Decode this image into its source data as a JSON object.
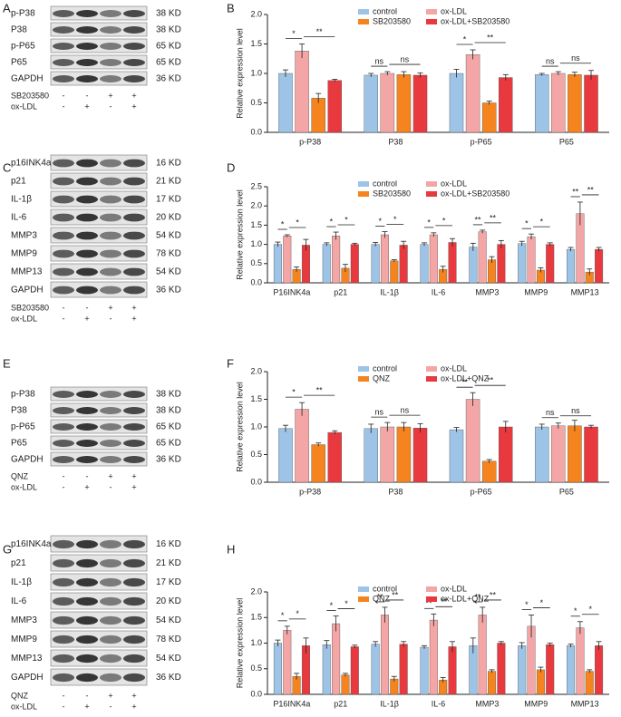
{
  "blots": [
    {
      "letter": "A",
      "rows": [
        {
          "label": "p-P38",
          "kd": "38 KD"
        },
        {
          "label": "P38",
          "kd": "38 KD"
        },
        {
          "label": "p-P65",
          "kd": "65 KD"
        },
        {
          "label": "P65",
          "kd": "65 KD"
        },
        {
          "label": "GAPDH",
          "kd": "36 KD"
        }
      ],
      "treatments": [
        {
          "label": "SB203580",
          "signs": [
            "-",
            "-",
            "+",
            "+"
          ]
        },
        {
          "label": "ox-LDL",
          "signs": [
            "-",
            "+",
            "-",
            "+"
          ]
        }
      ]
    },
    {
      "letter": "C",
      "rows": [
        {
          "label": "p16INK4a",
          "kd": "16 KD"
        },
        {
          "label": "p21",
          "kd": "21 KD"
        },
        {
          "label": "IL-1β",
          "kd": "17 KD"
        },
        {
          "label": "IL-6",
          "kd": "20 KD"
        },
        {
          "label": "MMP3",
          "kd": "54 KD"
        },
        {
          "label": "MMP9",
          "kd": "78 KD"
        },
        {
          "label": "MMP13",
          "kd": "54 KD"
        },
        {
          "label": "GAPDH",
          "kd": "36 KD"
        }
      ],
      "treatments": [
        {
          "label": "SB203580",
          "signs": [
            "-",
            "-",
            "+",
            "+"
          ]
        },
        {
          "label": "ox-LDL",
          "signs": [
            "-",
            "+",
            "-",
            "+"
          ]
        }
      ]
    },
    {
      "letter": "E",
      "rows": [
        {
          "label": "p-P38",
          "kd": "38 KD"
        },
        {
          "label": "P38",
          "kd": "38 KD"
        },
        {
          "label": "p-P65",
          "kd": "65 KD"
        },
        {
          "label": "P65",
          "kd": "65 KD"
        },
        {
          "label": "GAPDH",
          "kd": "36 KD"
        }
      ],
      "treatments": [
        {
          "label": "QNZ",
          "signs": [
            "-",
            "-",
            "+",
            "+"
          ]
        },
        {
          "label": "ox-LDL",
          "signs": [
            "-",
            "+",
            "-",
            "+"
          ]
        }
      ]
    },
    {
      "letter": "G",
      "rows": [
        {
          "label": "p16INK4a",
          "kd": "16 KD"
        },
        {
          "label": "p21",
          "kd": "21 KD"
        },
        {
          "label": "IL-1β",
          "kd": "17 KD"
        },
        {
          "label": "IL-6",
          "kd": "20 KD"
        },
        {
          "label": "MMP3",
          "kd": "54 KD"
        },
        {
          "label": "MMP9",
          "kd": "78 KD"
        },
        {
          "label": "MMP13",
          "kd": "54 KD"
        },
        {
          "label": "GAPDH",
          "kd": "36 KD"
        }
      ],
      "treatments": [
        {
          "label": "QNZ",
          "signs": [
            "-",
            "-",
            "+",
            "+"
          ]
        },
        {
          "label": "ox-LDL",
          "signs": [
            "-",
            "+",
            "-",
            "+"
          ]
        }
      ]
    }
  ],
  "chart_data": [
    {
      "type": "bar",
      "letter": "B",
      "ylabel": "Relative expression level",
      "categories": [
        "p-P38",
        "P38",
        "p-P65",
        "P65"
      ],
      "series": [
        {
          "name": "control",
          "color": "#9dc3e6",
          "values": [
            1.0,
            0.97,
            1.0,
            0.98
          ],
          "errors": [
            0.06,
            0.03,
            0.07,
            0.02
          ]
        },
        {
          "name": "ox-LDL",
          "color": "#f4a6a6",
          "values": [
            1.38,
            1.0,
            1.32,
            1.0
          ],
          "errors": [
            0.12,
            0.03,
            0.08,
            0.03
          ]
        },
        {
          "name": "SB203580",
          "color": "#f5841f",
          "values": [
            0.58,
            0.98,
            0.5,
            0.98
          ],
          "errors": [
            0.08,
            0.05,
            0.03,
            0.04
          ]
        },
        {
          "name": "ox-LDL+SB203580",
          "color": "#e8393e",
          "values": [
            0.88,
            0.97,
            0.93,
            0.97
          ],
          "errors": [
            0.02,
            0.04,
            0.05,
            0.08
          ]
        }
      ],
      "ylim": [
        0,
        2
      ],
      "yticks": [
        {
          "value": 0,
          "label": "0.0"
        },
        0.5,
        {
          "value": 1,
          "label": "1.0"
        },
        1.5,
        {
          "value": 2,
          "label": "2.0"
        }
      ],
      "annotations": [
        [
          "*",
          "**"
        ],
        [
          "ns",
          "ns"
        ],
        [
          "*",
          "**"
        ],
        [
          "ns",
          "ns"
        ]
      ]
    },
    {
      "type": "bar",
      "letter": "D",
      "ylabel": "Relative expression level",
      "categories": [
        "P16INK4a",
        "p21",
        "IL-1β",
        "IL-6",
        "MMP3",
        "MMP9",
        "MMP13"
      ],
      "series": [
        {
          "name": "control",
          "color": "#9dc3e6",
          "values": [
            1.0,
            1.0,
            1.0,
            1.0,
            0.93,
            1.02,
            0.87
          ],
          "errors": [
            0.06,
            0.04,
            0.05,
            0.04,
            0.1,
            0.06,
            0.05
          ]
        },
        {
          "name": "ox-LDL",
          "color": "#f4a6a6",
          "values": [
            1.22,
            1.22,
            1.25,
            1.25,
            1.33,
            1.2,
            1.8
          ],
          "errors": [
            0.03,
            0.1,
            0.08,
            0.05,
            0.04,
            0.07,
            0.3
          ]
        },
        {
          "name": "SB203580",
          "color": "#f5841f",
          "values": [
            0.35,
            0.38,
            0.57,
            0.35,
            0.6,
            0.33,
            0.28
          ],
          "errors": [
            0.06,
            0.1,
            0.03,
            0.08,
            0.08,
            0.06,
            0.08
          ]
        },
        {
          "name": "ox-LDL+SB203580",
          "color": "#e8393e",
          "values": [
            0.98,
            1.0,
            0.98,
            1.05,
            1.0,
            1.0,
            0.87
          ],
          "errors": [
            0.15,
            0.03,
            0.1,
            0.1,
            0.1,
            0.04,
            0.05
          ]
        }
      ],
      "ylim": [
        0,
        2.5
      ],
      "yticks": [
        {
          "value": 0,
          "label": "0.0"
        },
        0.5,
        {
          "value": 1,
          "label": "1.0"
        },
        1.5,
        {
          "value": 2,
          "label": "2.0"
        },
        2.5
      ],
      "annotations": [
        [
          "*",
          "*"
        ],
        [
          "*",
          "*"
        ],
        [
          "*",
          "*"
        ],
        [
          "*",
          "*"
        ],
        [
          "**",
          "**"
        ],
        [
          "*",
          "*"
        ],
        [
          "**",
          "**"
        ]
      ]
    },
    {
      "type": "bar",
      "letter": "F",
      "ylabel": "Relative expression level",
      "categories": [
        "p-P38",
        "P38",
        "p-P65",
        "P65"
      ],
      "series": [
        {
          "name": "control",
          "color": "#9dc3e6",
          "values": [
            0.97,
            0.97,
            0.95,
            1.0
          ],
          "errors": [
            0.06,
            0.08,
            0.04,
            0.05
          ]
        },
        {
          "name": "ox-LDL",
          "color": "#f4a6a6",
          "values": [
            1.32,
            1.0,
            1.5,
            1.02
          ],
          "errors": [
            0.12,
            0.08,
            0.12,
            0.05
          ]
        },
        {
          "name": "QNZ",
          "color": "#f5841f",
          "values": [
            0.68,
            1.0,
            0.38,
            1.02
          ],
          "errors": [
            0.03,
            0.08,
            0.03,
            0.1
          ]
        },
        {
          "name": "ox-LDL+QNZ",
          "color": "#e8393e",
          "values": [
            0.9,
            0.98,
            1.0,
            1.0
          ],
          "errors": [
            0.03,
            0.08,
            0.1,
            0.03
          ]
        }
      ],
      "ylim": [
        0,
        2
      ],
      "yticks": [
        {
          "value": 0,
          "label": "0.0"
        },
        0.5,
        {
          "value": 1,
          "label": "1.0"
        },
        1.5,
        {
          "value": 2,
          "label": "2.0"
        }
      ],
      "annotations": [
        [
          "*",
          "**"
        ],
        [
          "ns",
          "ns"
        ],
        [
          "**",
          "**"
        ],
        [
          "ns",
          "ns"
        ]
      ]
    },
    {
      "type": "bar",
      "letter": "H",
      "ylabel": "Relative expression level",
      "categories": [
        "P16INK4a",
        "p21",
        "IL-1β",
        "IL-6",
        "MMP3",
        "MMP9",
        "MMP13"
      ],
      "series": [
        {
          "name": "control",
          "color": "#9dc3e6",
          "values": [
            1.0,
            0.97,
            0.98,
            0.92,
            0.95,
            0.95,
            0.95
          ],
          "errors": [
            0.06,
            0.08,
            0.05,
            0.03,
            0.15,
            0.06,
            0.03
          ]
        },
        {
          "name": "ox-LDL",
          "color": "#f4a6a6",
          "values": [
            1.25,
            1.38,
            1.55,
            1.45,
            1.55,
            1.33,
            1.3
          ],
          "errors": [
            0.08,
            0.15,
            0.15,
            0.12,
            0.15,
            0.22,
            0.12
          ]
        },
        {
          "name": "QNZ",
          "color": "#f5841f",
          "values": [
            0.35,
            0.38,
            0.3,
            0.28,
            0.45,
            0.48,
            0.45
          ],
          "errors": [
            0.06,
            0.03,
            0.05,
            0.05,
            0.03,
            0.05,
            0.03
          ]
        },
        {
          "name": "ox-LDL+QNZ",
          "color": "#e8393e",
          "values": [
            0.95,
            0.93,
            0.98,
            0.93,
            1.0,
            0.97,
            0.95
          ],
          "errors": [
            0.15,
            0.03,
            0.05,
            0.1,
            0.03,
            0.03,
            0.08
          ]
        }
      ],
      "ylim": [
        0,
        2
      ],
      "yticks": [
        {
          "value": 0,
          "label": "0.0"
        },
        0.5,
        {
          "value": 1,
          "label": "1.0"
        },
        1.5,
        {
          "value": 2,
          "label": "2.0"
        }
      ],
      "annotations": [
        [
          "*",
          "*"
        ],
        [
          "*",
          "*"
        ],
        [
          "**",
          "**"
        ],
        [
          "**",
          "**"
        ],
        [
          "**",
          "**"
        ],
        [
          "*",
          "*"
        ],
        [
          "*",
          "*"
        ]
      ]
    }
  ]
}
